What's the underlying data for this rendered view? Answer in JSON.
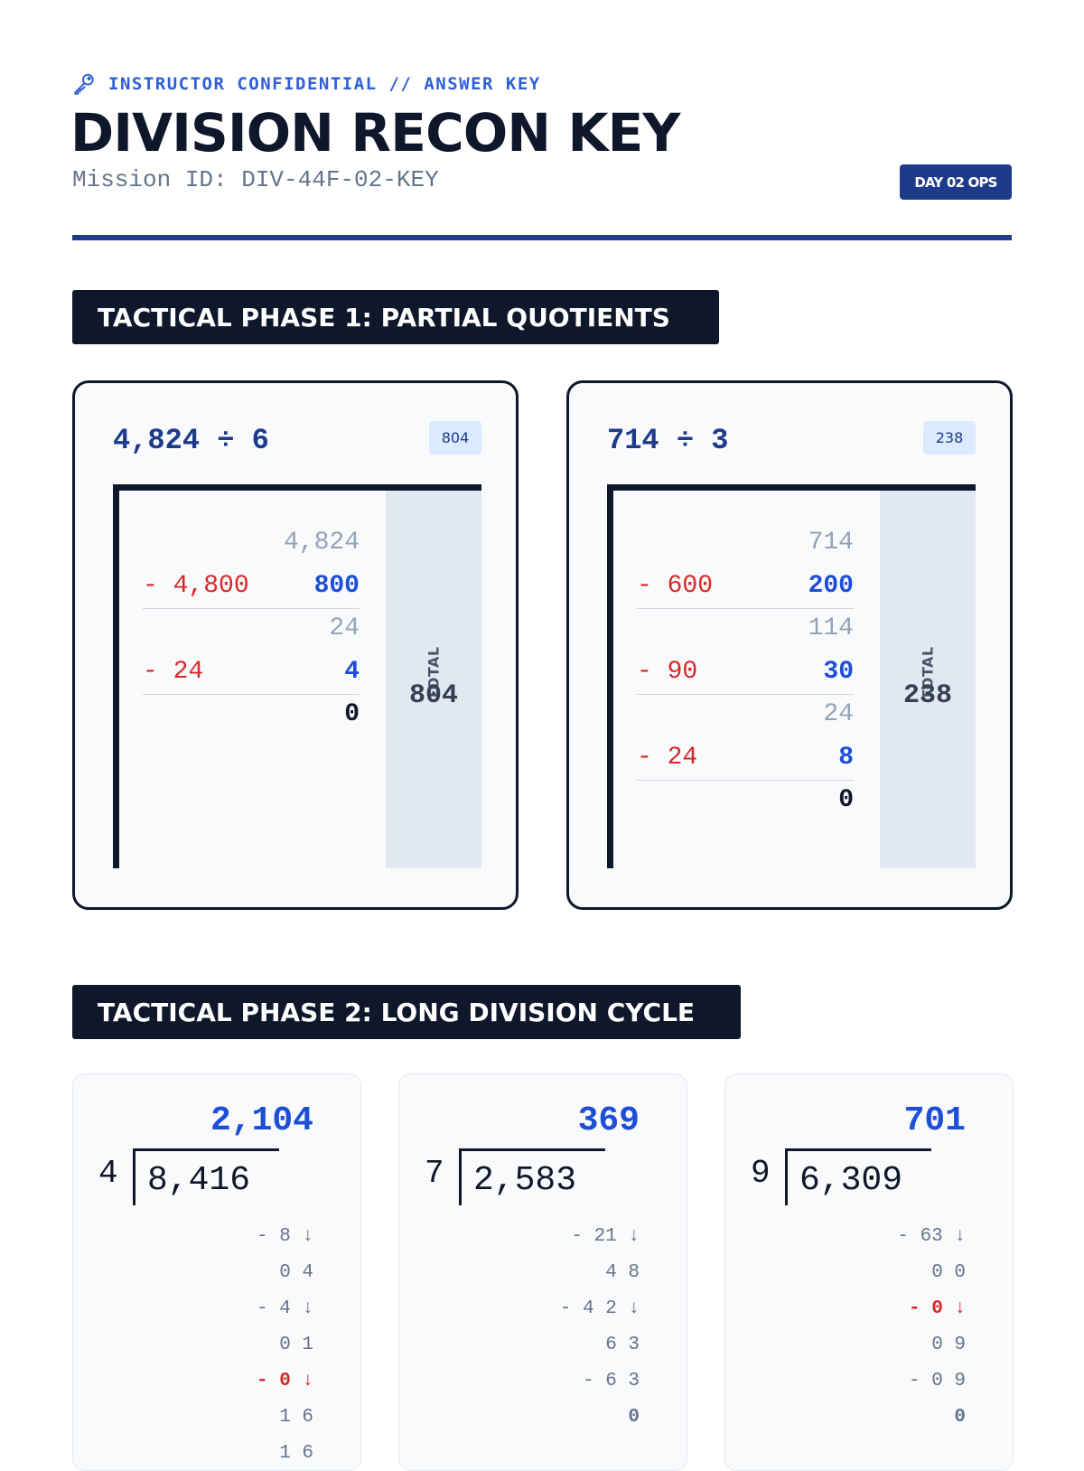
{
  "header": {
    "eyebrow": "INSTRUCTOR CONFIDENTIAL // ANSWER KEY",
    "title": "DIVISION RECON KEY",
    "mission": "Mission ID: DIV-44F-02-KEY",
    "badge": "DAY 02 OPS"
  },
  "phase1": {
    "title": "TACTICAL PHASE 1: PARTIAL QUOTIENTS",
    "total_label": "TOTAL",
    "problems": [
      {
        "expression": "4,824 ÷ 6",
        "answer_badge": "804",
        "total": "804",
        "rows": [
          {
            "kind": "rem",
            "text": "4,824"
          },
          {
            "kind": "sub",
            "sub": "- 4,800",
            "pq": "800"
          },
          {
            "kind": "rem",
            "text": "24"
          },
          {
            "kind": "sub",
            "sub": "- 24",
            "pq": "4"
          },
          {
            "kind": "final",
            "text": "0"
          }
        ]
      },
      {
        "expression": "714 ÷ 3",
        "answer_badge": "238",
        "total": "238",
        "rows": [
          {
            "kind": "rem",
            "text": "714"
          },
          {
            "kind": "sub",
            "sub": "- 600",
            "pq": "200"
          },
          {
            "kind": "rem",
            "text": "114"
          },
          {
            "kind": "sub",
            "sub": "- 90",
            "pq": "30"
          },
          {
            "kind": "rem",
            "text": "24"
          },
          {
            "kind": "sub",
            "sub": "- 24",
            "pq": "8"
          },
          {
            "kind": "final",
            "text": "0"
          }
        ]
      }
    ]
  },
  "phase2": {
    "title": "TACTICAL PHASE 2: LONG DIVISION CYCLE",
    "problems": [
      {
        "quotient": "2,104",
        "divisor": "4",
        "dividend": "8,416",
        "steps": [
          {
            "text": "- 8 ↓",
            "style": "normal"
          },
          {
            "text": "0 4",
            "style": "normal"
          },
          {
            "text": "- 4 ↓",
            "style": "normal"
          },
          {
            "text": "0 1",
            "style": "normal"
          },
          {
            "text": "- 0 ↓",
            "style": "zero"
          },
          {
            "text": "1 6",
            "style": "normal"
          },
          {
            "text": "1 6",
            "style": "normal"
          }
        ]
      },
      {
        "quotient": "369",
        "divisor": "7",
        "dividend": "2,583",
        "steps": [
          {
            "text": "- 21 ↓",
            "style": "normal"
          },
          {
            "text": "4 8",
            "style": "normal"
          },
          {
            "text": "- 4 2 ↓",
            "style": "normal"
          },
          {
            "text": "6 3",
            "style": "normal"
          },
          {
            "text": "- 6 3",
            "style": "normal"
          },
          {
            "text": "0",
            "style": "final"
          }
        ]
      },
      {
        "quotient": "701",
        "divisor": "9",
        "dividend": "6,309",
        "steps": [
          {
            "text": "- 63 ↓",
            "style": "normal"
          },
          {
            "text": "0 0",
            "style": "normal"
          },
          {
            "text": "- 0 ↓",
            "style": "zero"
          },
          {
            "text": "0 9",
            "style": "normal"
          },
          {
            "text": "- 0 9",
            "style": "normal"
          },
          {
            "text": "0",
            "style": "final"
          }
        ]
      }
    ]
  }
}
